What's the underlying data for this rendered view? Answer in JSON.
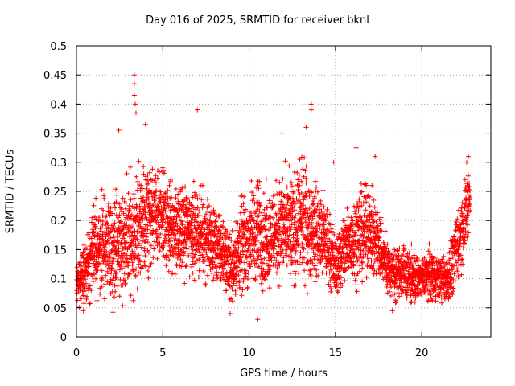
{
  "chart_data": {
    "type": "scatter",
    "title": "Day 016 of 2025, SRMTID for receiver bknl",
    "xlabel": "GPS time / hours",
    "ylabel": "SRMTID / TECUs",
    "xlim": [
      0,
      24
    ],
    "ylim": [
      0,
      0.5
    ],
    "xticks": [
      "0",
      "5",
      "10",
      "15",
      "20"
    ],
    "yticks": [
      "0",
      "0.05",
      "0.1",
      "0.15",
      "0.2",
      "0.25",
      "0.3",
      "0.35",
      "0.4",
      "0.45",
      "0.5"
    ],
    "grid": true,
    "marker": "+",
    "color": "#ff0000",
    "envelope": {
      "x": [
        0,
        0.3,
        0.6,
        1.0,
        1.5,
        2.0,
        2.5,
        3.0,
        3.5,
        4.0,
        4.5,
        5.0,
        5.5,
        6.0,
        6.5,
        7.0,
        7.5,
        8.0,
        8.5,
        9.0,
        9.5,
        10.0,
        10.5,
        11.0,
        11.5,
        12.0,
        12.5,
        13.0,
        13.5,
        14.0,
        14.5,
        15.0,
        15.5,
        16.0,
        16.5,
        17.0,
        17.5,
        18.0,
        18.5,
        19.0,
        19.5,
        20.0,
        20.5,
        21.0,
        21.5,
        22.0,
        22.5,
        22.8
      ],
      "center": [
        0.09,
        0.1,
        0.12,
        0.15,
        0.16,
        0.15,
        0.16,
        0.17,
        0.18,
        0.2,
        0.21,
        0.2,
        0.19,
        0.18,
        0.19,
        0.18,
        0.17,
        0.16,
        0.14,
        0.12,
        0.15,
        0.17,
        0.18,
        0.17,
        0.18,
        0.19,
        0.18,
        0.2,
        0.19,
        0.18,
        0.16,
        0.12,
        0.15,
        0.17,
        0.18,
        0.18,
        0.16,
        0.12,
        0.11,
        0.11,
        0.1,
        0.1,
        0.11,
        0.1,
        0.1,
        0.15,
        0.2,
        0.25
      ],
      "spread": [
        0.03,
        0.04,
        0.05,
        0.06,
        0.07,
        0.07,
        0.08,
        0.09,
        0.1,
        0.08,
        0.07,
        0.07,
        0.07,
        0.06,
        0.07,
        0.06,
        0.06,
        0.06,
        0.05,
        0.05,
        0.07,
        0.07,
        0.08,
        0.07,
        0.07,
        0.08,
        0.08,
        0.09,
        0.08,
        0.07,
        0.06,
        0.04,
        0.06,
        0.06,
        0.07,
        0.06,
        0.06,
        0.04,
        0.04,
        0.04,
        0.04,
        0.03,
        0.04,
        0.03,
        0.04,
        0.05,
        0.06,
        0.05
      ]
    },
    "peaks": [
      {
        "x": 3.35,
        "y": 0.45
      },
      {
        "x": 3.35,
        "y": 0.435
      },
      {
        "x": 3.35,
        "y": 0.415
      },
      {
        "x": 3.4,
        "y": 0.4
      },
      {
        "x": 3.45,
        "y": 0.385
      },
      {
        "x": 4.0,
        "y": 0.365
      },
      {
        "x": 2.45,
        "y": 0.355
      },
      {
        "x": 7.0,
        "y": 0.39
      },
      {
        "x": 13.6,
        "y": 0.4
      },
      {
        "x": 13.6,
        "y": 0.39
      },
      {
        "x": 13.3,
        "y": 0.36
      },
      {
        "x": 11.9,
        "y": 0.35
      },
      {
        "x": 10.5,
        "y": 0.03
      },
      {
        "x": 18.3,
        "y": 0.045
      },
      {
        "x": 0.4,
        "y": 0.045
      },
      {
        "x": 8.9,
        "y": 0.04
      },
      {
        "x": 16.2,
        "y": 0.325
      },
      {
        "x": 17.3,
        "y": 0.31
      },
      {
        "x": 22.7,
        "y": 0.31
      },
      {
        "x": 22.6,
        "y": 0.3
      },
      {
        "x": 14.9,
        "y": 0.3
      }
    ]
  }
}
